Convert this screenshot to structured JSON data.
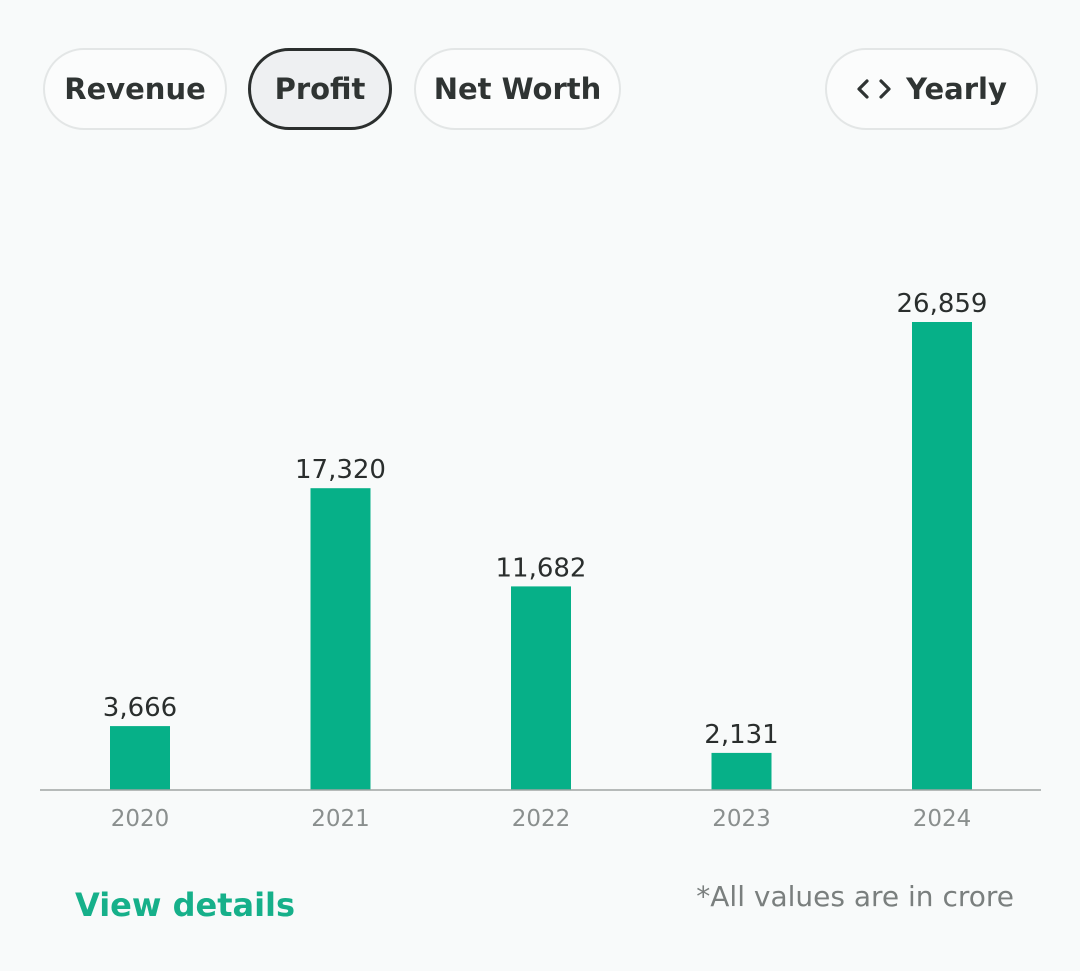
{
  "tabs": {
    "revenue_label": "Revenue",
    "profit_label": "Profit",
    "networth_label": "Net Worth",
    "selected": "Profit"
  },
  "period_toggle": {
    "label": "Yearly",
    "icon": "code-brackets-icon"
  },
  "colors": {
    "bar": "#06b088",
    "link": "#16b08a"
  },
  "chart_data": {
    "type": "bar",
    "title": "",
    "xlabel": "",
    "ylabel": "",
    "categories": [
      "2020",
      "2021",
      "2022",
      "2023",
      "2024"
    ],
    "values": [
      3666,
      17320,
      11682,
      2131,
      26859
    ],
    "value_labels": [
      "3,666",
      "17,320",
      "11,682",
      "2,131",
      "26,859"
    ],
    "ylim": [
      0,
      26859
    ],
    "grid": false
  },
  "footer": {
    "view_details_label": "View details",
    "note": "*All values are in crore"
  }
}
